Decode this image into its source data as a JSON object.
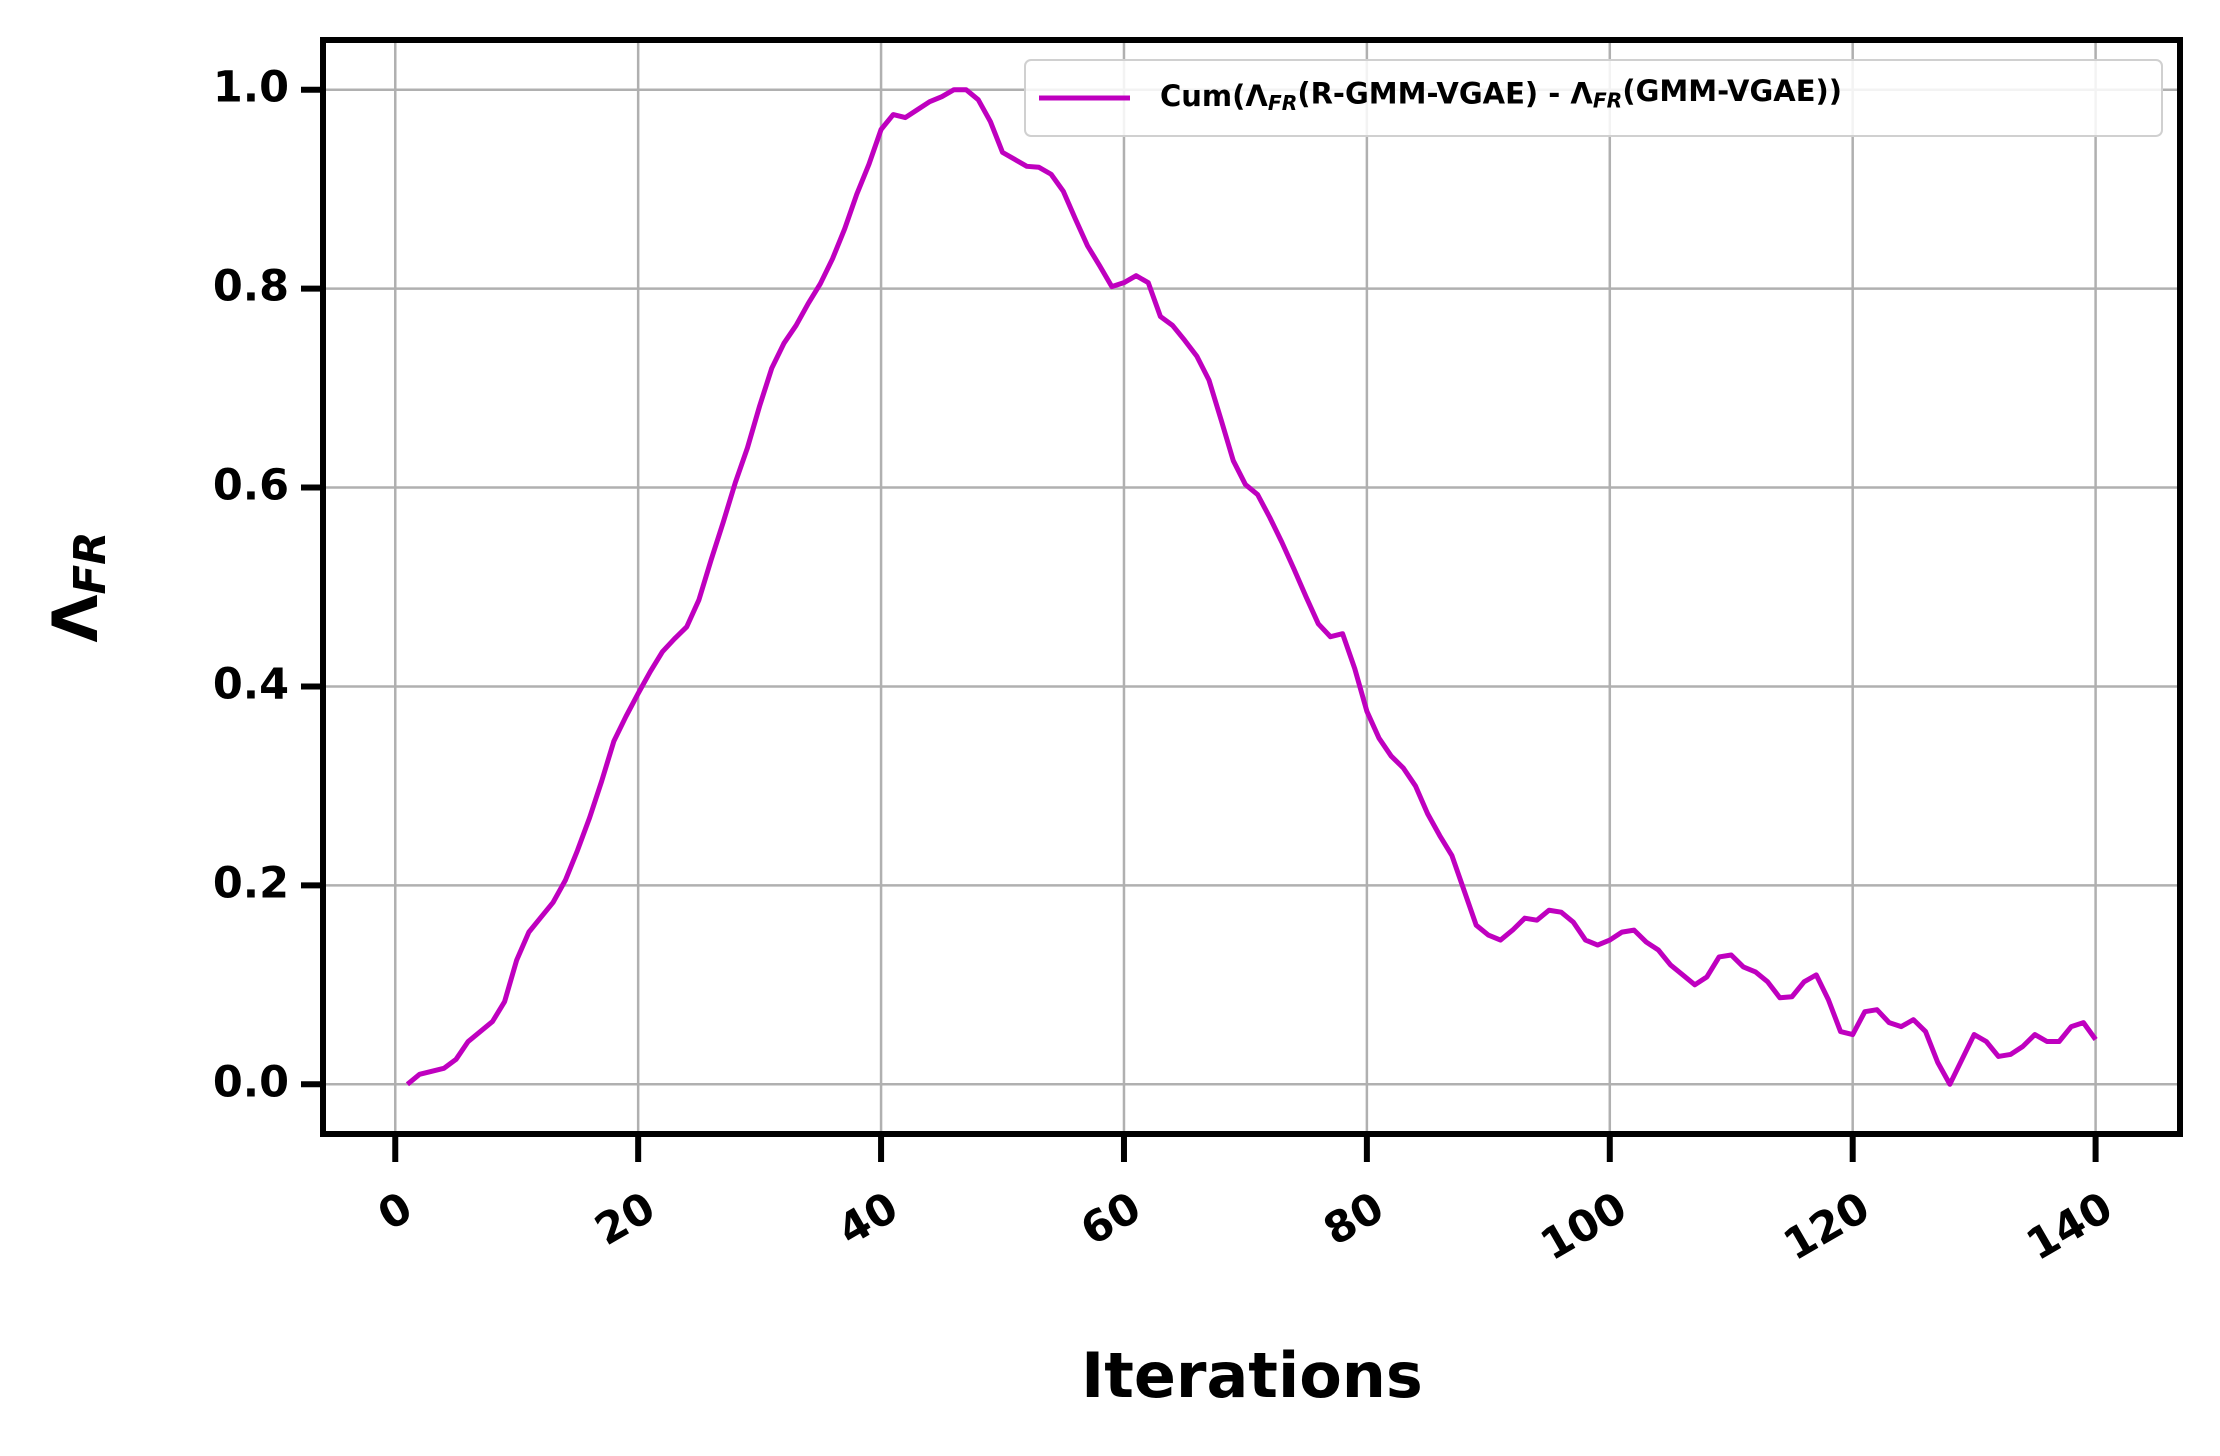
{
  "chart_data": {
    "type": "line",
    "x_label": "Iterations",
    "y_label": "ΛFR",
    "x": [
      1,
      2,
      3,
      4,
      5,
      6,
      7,
      8,
      9,
      10,
      11,
      12,
      13,
      14,
      15,
      16,
      17,
      18,
      19,
      20,
      21,
      22,
      23,
      24,
      25,
      26,
      27,
      28,
      29,
      30,
      31,
      32,
      33,
      34,
      35,
      36,
      37,
      38,
      39,
      40,
      41,
      42,
      43,
      44,
      45,
      46,
      47,
      48,
      49,
      50,
      51,
      52,
      53,
      54,
      55,
      56,
      57,
      58,
      59,
      60,
      61,
      62,
      63,
      64,
      65,
      66,
      67,
      68,
      69,
      70,
      71,
      72,
      73,
      74,
      75,
      76,
      77,
      78,
      79,
      80,
      81,
      82,
      83,
      84,
      85,
      86,
      87,
      88,
      89,
      90,
      91,
      92,
      93,
      94,
      95,
      96,
      97,
      98,
      99,
      100,
      101,
      102,
      103,
      104,
      105,
      106,
      107,
      108,
      109,
      110,
      111,
      112,
      113,
      114,
      115,
      116,
      117,
      118,
      119,
      120,
      121,
      122,
      123,
      124,
      125,
      126,
      127,
      128,
      129,
      130,
      131,
      132,
      133,
      134,
      135,
      136,
      137,
      138,
      139,
      140
    ],
    "series": [
      {
        "name": "Cum(ΛFR(R-GMM-VGAE) - ΛFR(GMM-VGAE))",
        "color": "#bf00bf",
        "values": [
          0.0,
          0.01,
          0.013,
          0.016,
          0.025,
          0.043,
          0.053,
          0.063,
          0.083,
          0.125,
          0.153,
          0.168,
          0.183,
          0.205,
          0.235,
          0.268,
          0.305,
          0.345,
          0.37,
          0.393,
          0.415,
          0.435,
          0.448,
          0.46,
          0.487,
          0.527,
          0.565,
          0.605,
          0.64,
          0.682,
          0.72,
          0.745,
          0.763,
          0.785,
          0.805,
          0.83,
          0.86,
          0.895,
          0.925,
          0.96,
          0.975,
          0.972,
          0.98,
          0.988,
          0.993,
          1.0,
          1.0,
          0.99,
          0.968,
          0.937,
          0.93,
          0.923,
          0.922,
          0.915,
          0.898,
          0.87,
          0.843,
          0.823,
          0.802,
          0.806,
          0.813,
          0.806,
          0.772,
          0.763,
          0.748,
          0.732,
          0.708,
          0.668,
          0.627,
          0.603,
          0.593,
          0.57,
          0.545,
          0.518,
          0.49,
          0.463,
          0.45,
          0.453,
          0.418,
          0.375,
          0.348,
          0.33,
          0.318,
          0.3,
          0.272,
          0.25,
          0.23,
          0.195,
          0.16,
          0.15,
          0.145,
          0.155,
          0.167,
          0.165,
          0.175,
          0.173,
          0.163,
          0.145,
          0.14,
          0.145,
          0.153,
          0.155,
          0.143,
          0.135,
          0.12,
          0.11,
          0.1,
          0.108,
          0.128,
          0.13,
          0.118,
          0.113,
          0.103,
          0.087,
          0.088,
          0.103,
          0.11,
          0.085,
          0.053,
          0.05,
          0.073,
          0.075,
          0.062,
          0.058,
          0.065,
          0.053,
          0.022,
          0.0,
          0.025,
          0.05,
          0.043,
          0.028,
          0.03,
          0.038,
          0.05,
          0.043,
          0.043,
          0.058,
          0.062,
          0.045
        ]
      }
    ],
    "xlim": [
      -5.95,
      146.95
    ],
    "xticks": [
      0,
      20,
      40,
      60,
      80,
      100,
      120,
      140
    ],
    "ylim": [
      -0.05,
      1.05
    ],
    "yticks": [
      {
        "value": 0,
        "label": "0.0"
      },
      {
        "value": 0.2,
        "label": "0.2"
      },
      {
        "value": 0.4,
        "label": "0.4"
      },
      {
        "value": 0.6,
        "label": "0.6"
      },
      {
        "value": 0.8,
        "label": "0.8"
      },
      {
        "value": 1.0,
        "label": "1.0"
      }
    ],
    "grid": true,
    "legend": "upper right"
  }
}
